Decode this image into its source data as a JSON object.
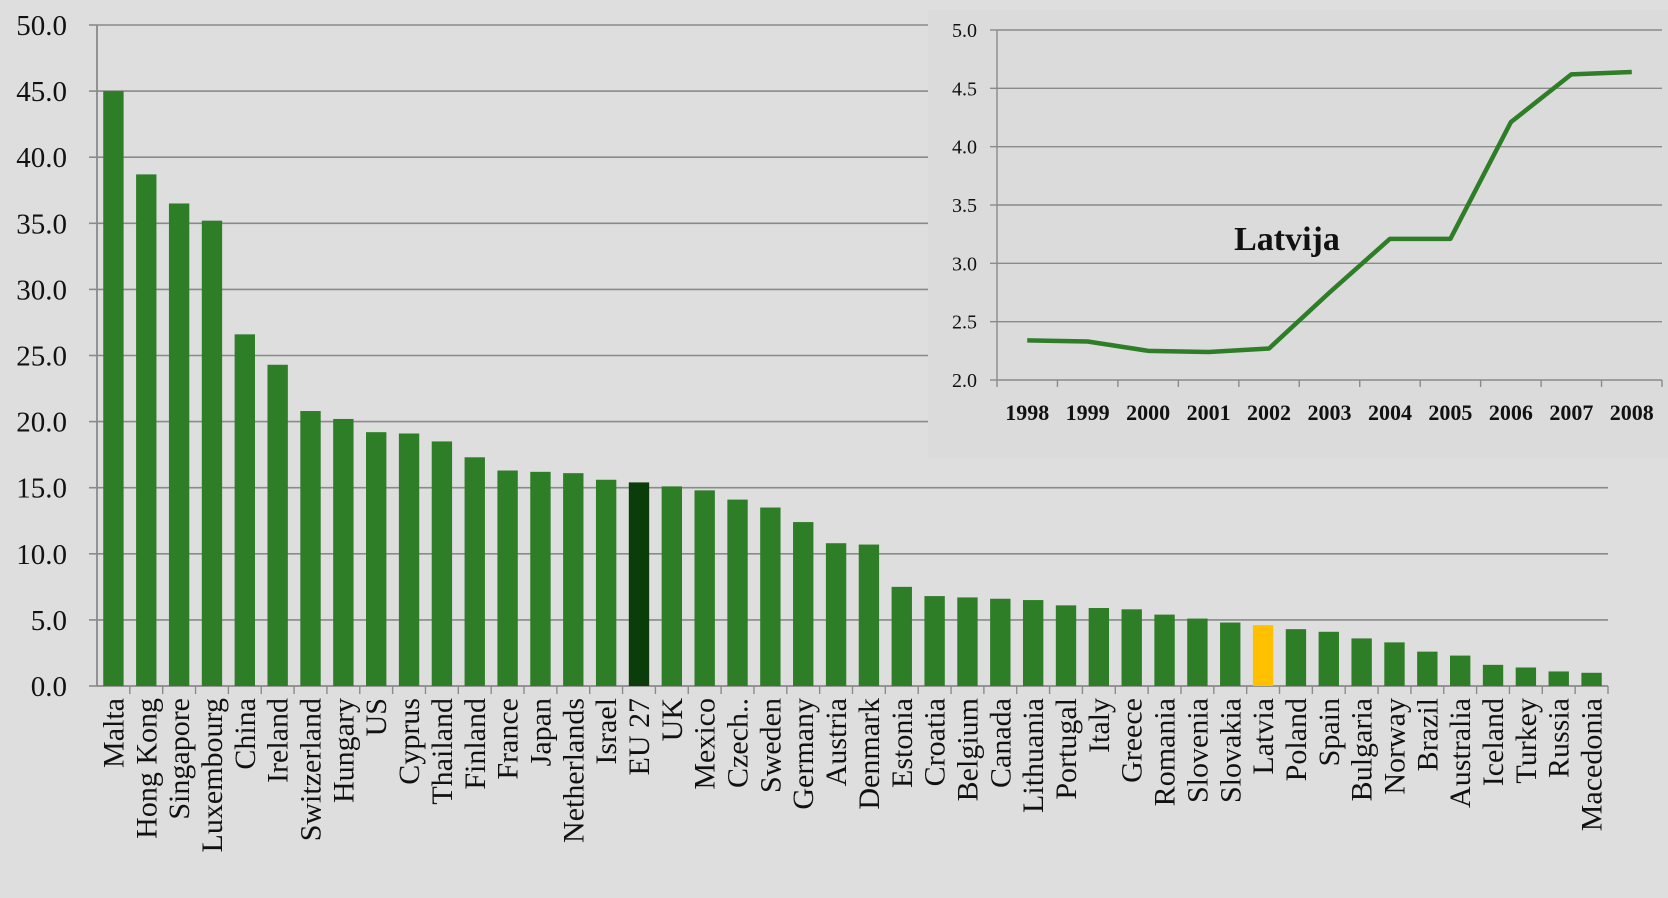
{
  "chart_data": [
    {
      "type": "bar",
      "title": "",
      "xlabel": "",
      "ylabel": "",
      "ylim": [
        0,
        50
      ],
      "yticks": [
        "0.0",
        "5.0",
        "10.0",
        "15.0",
        "20.0",
        "25.0",
        "30.0",
        "35.0",
        "40.0",
        "45.0",
        "50.0"
      ],
      "grid": true,
      "colors": {
        "default": "#2e7d27",
        "highlight_eu": "#0b3d0b",
        "highlight_latvia": "#ffc000",
        "grid": "#8a8a8a",
        "axis": "#8a8a8a"
      },
      "categories": [
        "Malta",
        "Hong Kong",
        "Singapore",
        "Luxembourg",
        "China",
        "Ireland",
        "Switzerland",
        "Hungary",
        "US",
        "Cyprus",
        "Thailand",
        "Finland",
        "France",
        "Japan",
        "Netherlands",
        "Israel",
        "EU 27",
        "UK",
        "Mexico",
        "Czech..",
        "Sweden",
        "Germany",
        "Austria",
        "Denmark",
        "Estonia",
        "Croatia",
        "Belgium",
        "Canada",
        "Lithuania",
        "Portugal",
        "Italy",
        "Greece",
        "Romania",
        "Slovenia",
        "Slovakia",
        "Latvia",
        "Poland",
        "Spain",
        "Bulgaria",
        "Norway",
        "Brazil",
        "Australia",
        "Iceland",
        "Turkey",
        "Russia",
        "Macedonia"
      ],
      "values": [
        45.0,
        38.7,
        36.5,
        35.2,
        26.6,
        24.3,
        20.8,
        20.2,
        19.2,
        19.1,
        18.5,
        17.3,
        16.3,
        16.2,
        16.1,
        15.6,
        15.4,
        15.1,
        14.8,
        14.1,
        13.5,
        12.4,
        10.8,
        10.7,
        7.5,
        6.8,
        6.7,
        6.6,
        6.5,
        6.1,
        5.9,
        5.8,
        5.4,
        5.1,
        4.8,
        4.6,
        4.3,
        4.1,
        3.6,
        3.3,
        2.6,
        2.3,
        1.6,
        1.4,
        1.1,
        1.0
      ],
      "highlights": {
        "EU 27": "highlight_eu",
        "Latvia": "highlight_latvia"
      }
    },
    {
      "type": "line",
      "title": "",
      "annotation": "Latvija",
      "xlabel": "",
      "ylabel": "",
      "ylim": [
        2.0,
        5.0
      ],
      "yticks": [
        "2.0",
        "2.5",
        "3.0",
        "3.5",
        "4.0",
        "4.5",
        "5.0"
      ],
      "grid": true,
      "line_color": "#2e7d27",
      "x": [
        "1998",
        "1999",
        "2000",
        "2001",
        "2002",
        "2003",
        "2004",
        "2005",
        "2006",
        "2007",
        "2008"
      ],
      "values": [
        2.34,
        2.33,
        2.25,
        2.24,
        2.27,
        2.75,
        3.21,
        3.21,
        4.21,
        4.62,
        4.64
      ]
    }
  ]
}
